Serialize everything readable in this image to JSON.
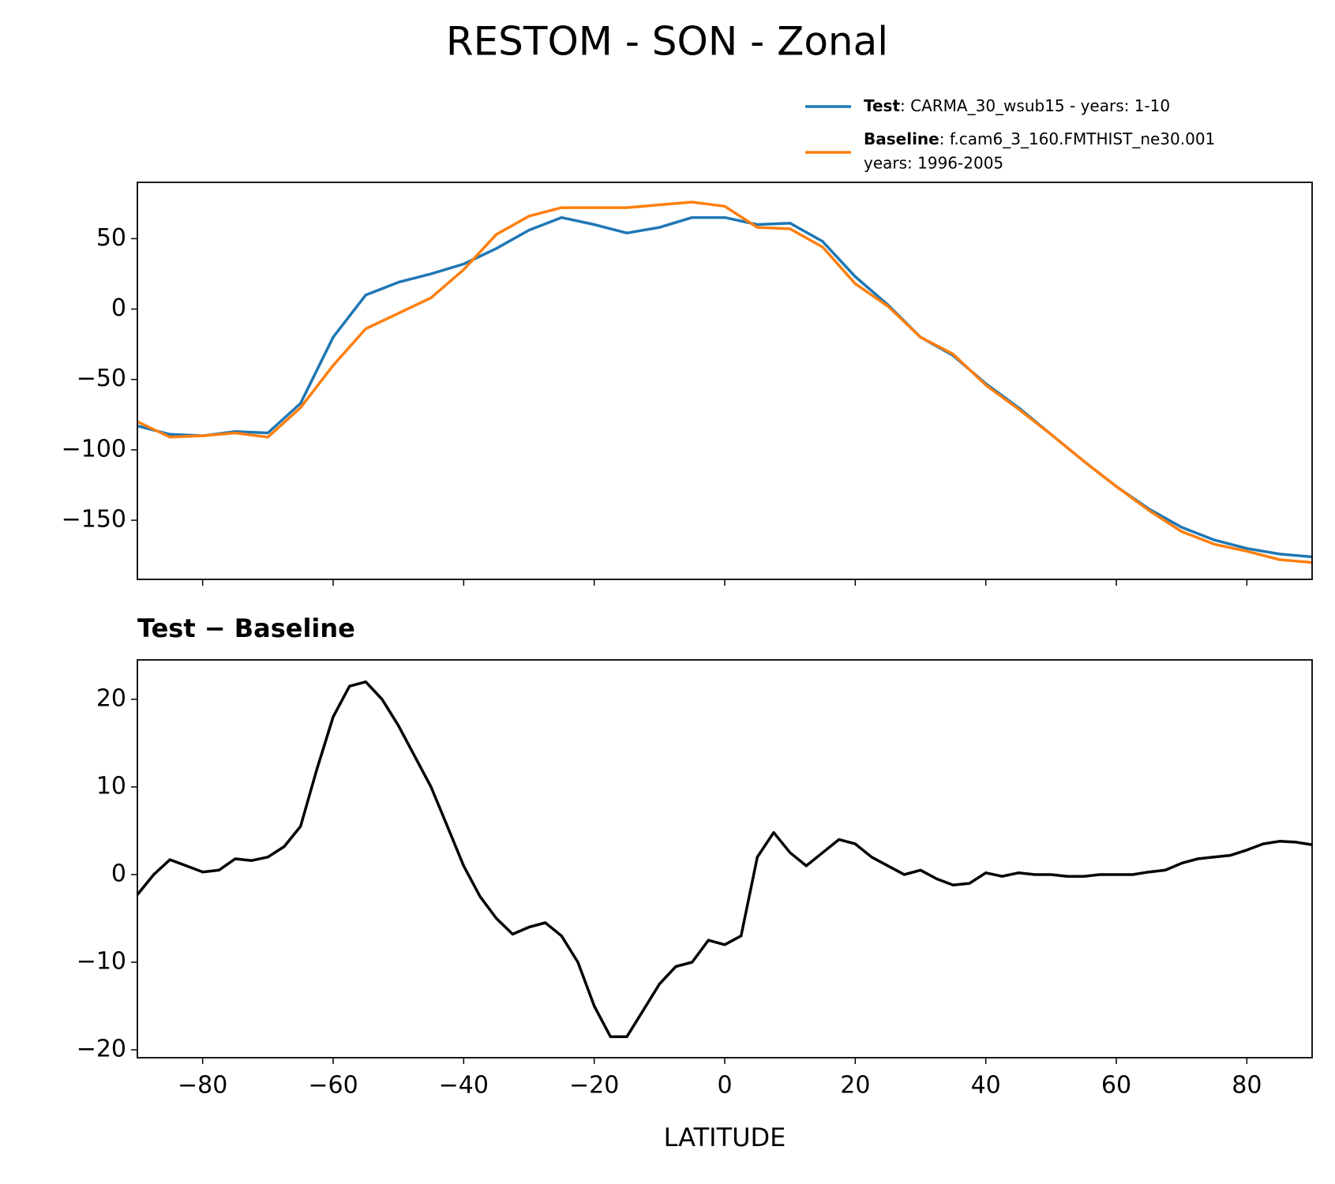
{
  "title": "RESTOM - SON - Zonal",
  "chart_data": [
    {
      "type": "line",
      "x": [
        -90,
        -85,
        -80,
        -75,
        -70,
        -65,
        -60,
        -55,
        -50,
        -45,
        -40,
        -35,
        -30,
        -25,
        -20,
        -15,
        -10,
        -5,
        0,
        5,
        10,
        15,
        20,
        25,
        30,
        35,
        40,
        45,
        50,
        55,
        60,
        65,
        70,
        75,
        80,
        85,
        90
      ],
      "series": [
        {
          "name": "Test",
          "detail": [
            ": CARMA_30_wsub15 - years: 1-10"
          ],
          "color": "#1f77b4",
          "values": [
            -83,
            -89,
            -90,
            -87,
            -88,
            -67,
            -20,
            10,
            19,
            25,
            32,
            43,
            56,
            65,
            60,
            54,
            58,
            65,
            65,
            60,
            61,
            48,
            23,
            3,
            -20,
            -33,
            -53,
            -70,
            -89,
            -108,
            -126,
            -142,
            -155,
            -164,
            -170,
            -174,
            -176
          ]
        },
        {
          "name": "Baseline",
          "detail": [
            ": f.cam6_3_160.FMTHIST_ne30.001",
            "years: 1996-2005"
          ],
          "color": "#ff7f0e",
          "values": [
            -80,
            -91,
            -90,
            -88,
            -91,
            -70,
            -40,
            -14,
            -3,
            8,
            28,
            53,
            66,
            72,
            72,
            72,
            74,
            76,
            73,
            58,
            57,
            44,
            18,
            2,
            -20,
            -32,
            -54,
            -71,
            -89,
            -108,
            -126,
            -143,
            -158,
            -167,
            -172,
            -178,
            -180
          ]
        }
      ],
      "xlim": [
        -90,
        90
      ],
      "xticks": [
        -80,
        -60,
        -40,
        -20,
        0,
        20,
        40,
        60,
        80
      ],
      "xtick_labels": false,
      "ylim": [
        -192,
        90
      ],
      "yticks": [
        {
          "value": -150,
          "label": "−150"
        },
        {
          "value": -100,
          "label": "−100"
        },
        {
          "value": -50,
          "label": "−50"
        },
        0,
        50
      ],
      "legend": "upper right"
    },
    {
      "type": "line",
      "title": "Test − Baseline",
      "xlabel": "LATITUDE",
      "x": [
        -90,
        -87.5,
        -85,
        -82.5,
        -80,
        -77.5,
        -75,
        -72.5,
        -70,
        -67.5,
        -65,
        -62.5,
        -60,
        -57.5,
        -55,
        -52.5,
        -50,
        -47.5,
        -45,
        -42.5,
        -40,
        -37.5,
        -35,
        -32.5,
        -30,
        -27.5,
        -25,
        -22.5,
        -20,
        -17.5,
        -15,
        -12.5,
        -10,
        -7.5,
        -5,
        -2.5,
        0,
        2.5,
        5,
        7.5,
        10,
        12.5,
        15,
        17.5,
        20,
        22.5,
        25,
        27.5,
        30,
        32.5,
        35,
        37.5,
        40,
        42.5,
        45,
        47.5,
        50,
        52.5,
        55,
        57.5,
        60,
        62.5,
        65,
        67.5,
        70,
        72.5,
        75,
        77.5,
        80,
        82.5,
        85,
        87.5,
        90
      ],
      "series": [
        {
          "color": "#000000",
          "values": [
            -2.3,
            0,
            1.7,
            1.0,
            0.3,
            0.5,
            1.8,
            1.6,
            2.0,
            3.2,
            5.5,
            12,
            18,
            21.5,
            22,
            20,
            17,
            13.5,
            10,
            5.5,
            1,
            -2.5,
            -5,
            -6.8,
            -6,
            -5.5,
            -7,
            -10,
            -15,
            -18.5,
            -18.5,
            -15.5,
            -12.5,
            -10.5,
            -10,
            -7.5,
            -8,
            -7,
            2,
            4.8,
            2.5,
            1,
            2.5,
            4,
            3.5,
            2,
            1,
            0,
            0.5,
            -0.5,
            -1.2,
            -1,
            0.2,
            -0.2,
            0.2,
            0,
            0,
            -0.2,
            -0.2,
            0,
            0,
            0,
            0.3,
            0.5,
            1.3,
            1.8,
            2,
            2.2,
            2.8,
            3.5,
            3.8,
            3.7,
            3.4
          ]
        }
      ],
      "xlim": [
        -90,
        90
      ],
      "xticks": [
        {
          "value": -80,
          "label": "−80"
        },
        {
          "value": -60,
          "label": "−60"
        },
        {
          "value": -40,
          "label": "−40"
        },
        {
          "value": -20,
          "label": "−20"
        },
        0,
        20,
        40,
        60,
        80
      ],
      "ylim": [
        -20.9,
        24.5
      ],
      "yticks": [
        {
          "value": -20,
          "label": "−20"
        },
        {
          "value": -10,
          "label": "−10"
        },
        0,
        10,
        20
      ]
    }
  ]
}
